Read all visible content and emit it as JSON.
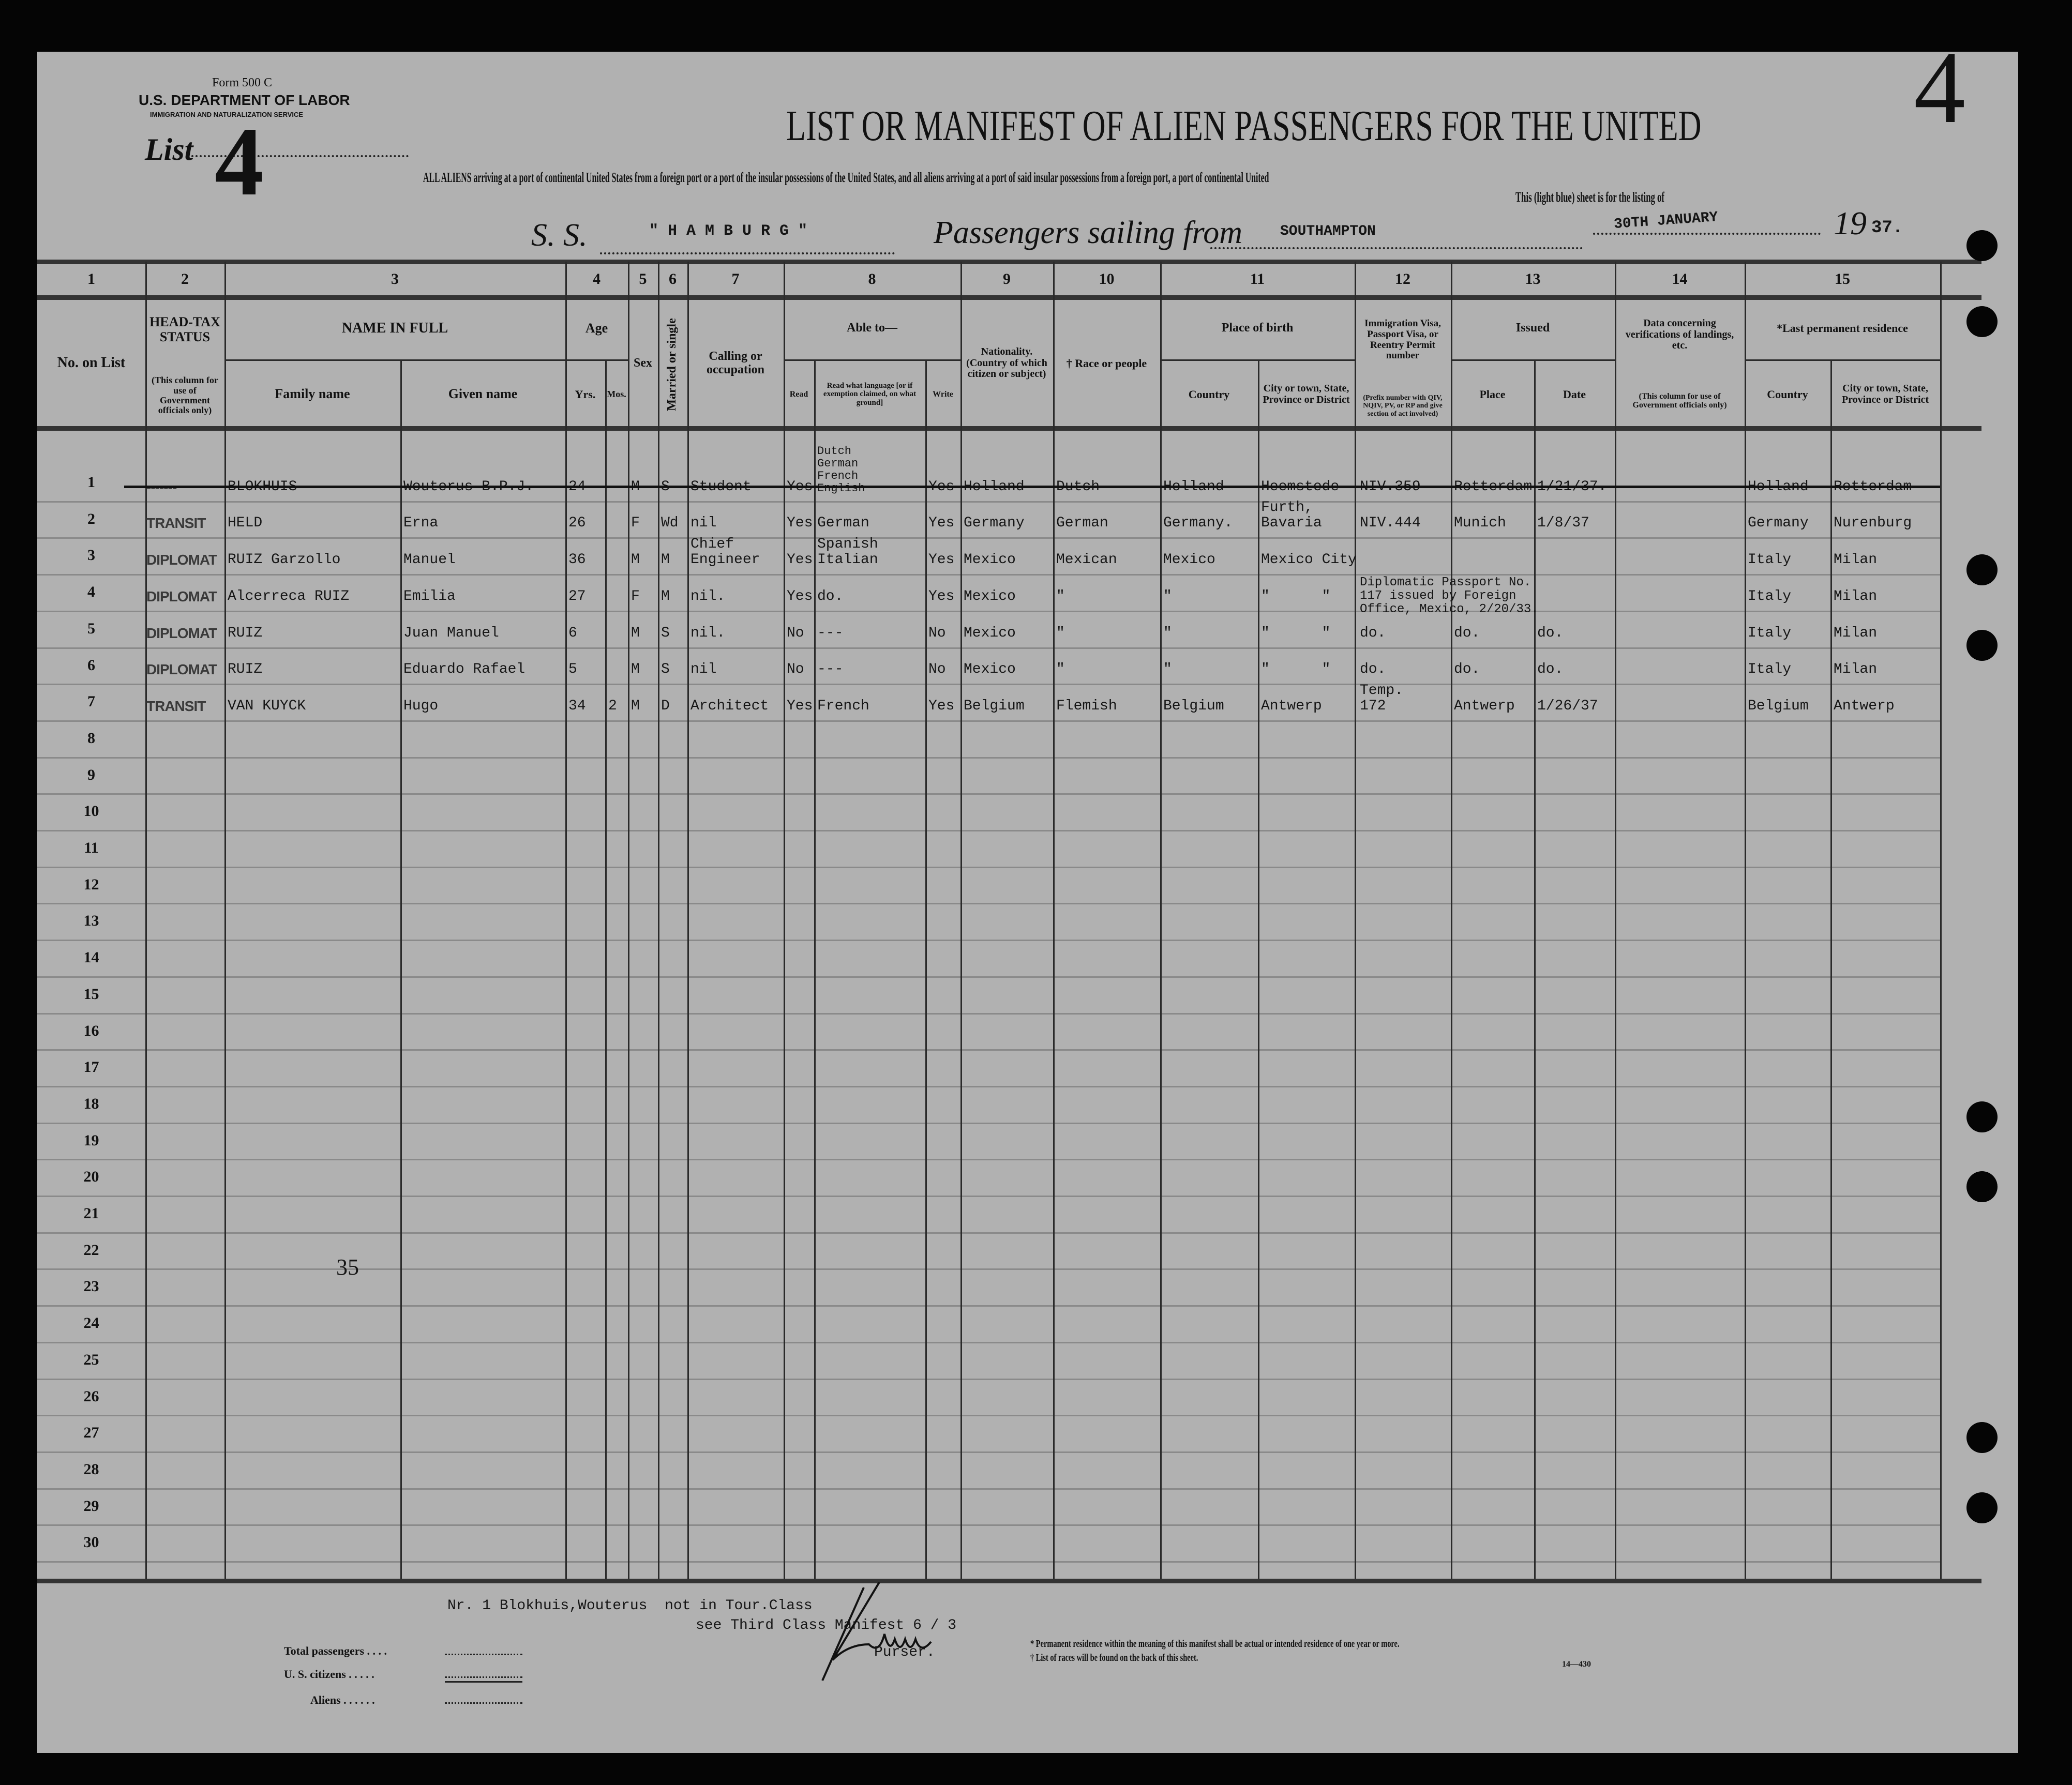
{
  "form": {
    "form_number": "Form 500 C",
    "department": "U.S. DEPARTMENT OF LABOR",
    "service": "IMMIGRATION AND NATURALIZATION SERVICE",
    "list_label": "List",
    "list_number": "4",
    "corner_number": "4"
  },
  "title": "LIST OR MANIFEST OF ALIEN PASSENGERS FOR THE UNITED",
  "subtitle_line1": "ALL ALIENS arriving at a port of continental United States from a foreign port or a port of the insular possessions of the United States, and all aliens arriving at a port of said insular possessions from a foreign port, a port of continental United",
  "subtitle_line2": "This (light blue) sheet is for the listing of",
  "voyage": {
    "ss_label": "S. S.",
    "ship": "\" H A M B U R G \"",
    "sailing_label": "Passengers sailing from",
    "port": "SOUTHAMPTON",
    "date": "30TH JANUARY",
    "year_prefix": "19",
    "year_suffix": "37."
  },
  "header": {
    "column_numbers": [
      "1",
      "2",
      "3",
      "4",
      "5",
      "6",
      "7",
      "8",
      "9",
      "10",
      "11",
      "12",
      "13",
      "14",
      "15"
    ],
    "no_on_list": "No. on List",
    "head_tax": "HEAD-TAX STATUS",
    "head_tax_note": "(This column for use of Government officials only)",
    "name_in_full": "NAME IN FULL",
    "family_name": "Family name",
    "given_name": "Given name",
    "age": "Age",
    "yrs": "Yrs.",
    "mos": "Mos.",
    "sex": "Sex",
    "marital": "Married or single",
    "calling": "Calling or occupation",
    "able_to": "Able to—",
    "read": "Read",
    "read_language": "Read what language [or if exemption claimed, on what ground]",
    "write": "Write",
    "nationality": "Nationality. (Country of which citizen or subject)",
    "race": "† Race or people",
    "place_of_birth": "Place of birth",
    "birth_country": "Country",
    "birth_city": "City or town, State, Province or District",
    "visa": "Immigration Visa, Passport Visa, or Reentry Permit number",
    "visa_note": "(Prefix number with QIV, NQIV, PV, or RP and give section of act involved)",
    "issued": "Issued",
    "issued_place": "Place",
    "issued_date": "Date",
    "verification": "Data concerning verifications of landings, etc.",
    "verification_note": "(This column for use of Government officials only)",
    "last_residence": "*Last permanent residence",
    "res_country": "Country",
    "res_city": "City or town, State, Province or District"
  },
  "row_numbers": [
    "1",
    "2",
    "3",
    "4",
    "5",
    "6",
    "7",
    "8",
    "9",
    "10",
    "11",
    "12",
    "13",
    "14",
    "15",
    "16",
    "17",
    "18",
    "19",
    "20",
    "21",
    "22",
    "23",
    "24",
    "25",
    "26",
    "27",
    "28",
    "29",
    "30"
  ],
  "rows": [
    {
      "status": "-------",
      "family": "BLOKHUIS",
      "given": "Wouterus B.P.J.",
      "yrs": "24",
      "mos": "",
      "sex": "M",
      "marital": "S",
      "occupation": "Student",
      "read": "Yes",
      "language": "Dutch\nGerman\nFrench\nEnglish",
      "write": "Yes",
      "nationality": "Holland",
      "race": "Dutch",
      "birth_country": "Holland",
      "birth_city": "Heemstede",
      "visa": "NIV.359",
      "issued_place": "Rotterdam",
      "issued_date": "1/21/37.",
      "res_country": "Holland",
      "res_city": "Rotterdam",
      "struck": true
    },
    {
      "status": "TRANSIT",
      "family": "HELD",
      "given": "Erna",
      "yrs": "26",
      "mos": "",
      "sex": "F",
      "marital": "Wd",
      "occupation": "nil",
      "read": "Yes",
      "language": "German",
      "write": "Yes",
      "nationality": "Germany",
      "race": "German",
      "birth_country": "Germany.",
      "birth_city": "Furth,\nBavaria",
      "visa": "NIV.444",
      "issued_place": "Munich",
      "issued_date": "1/8/37",
      "res_country": "Germany",
      "res_city": "Nurenburg"
    },
    {
      "status": "DIPLOMAT",
      "family": "RUIZ Garzollo",
      "given": "Manuel",
      "yrs": "36",
      "mos": "",
      "sex": "M",
      "marital": "M",
      "occupation": "Chief\nEngineer",
      "read": "Yes",
      "language": "Spanish\nItalian",
      "write": "Yes",
      "nationality": "Mexico",
      "race": "Mexican",
      "birth_country": "Mexico",
      "birth_city": "Mexico City",
      "visa": "",
      "issued_place": "",
      "issued_date": "",
      "res_country": "Italy",
      "res_city": "Milan"
    },
    {
      "status": "DIPLOMAT",
      "family": "Alcerreca RUIZ",
      "given": "Emilia",
      "yrs": "27",
      "mos": "",
      "sex": "F",
      "marital": "M",
      "occupation": "nil.",
      "read": "Yes",
      "language": "do.",
      "write": "Yes",
      "nationality": "Mexico",
      "race": "\"",
      "birth_country": "\"",
      "birth_city": "\"      \"",
      "visa": "Diplomatic Passport No.\n117 issued by Foreign\nOffice, Mexico, 2/20/33.",
      "issued_place": "",
      "issued_date": "",
      "res_country": "Italy",
      "res_city": "Milan"
    },
    {
      "status": "DIPLOMAT",
      "family": "RUIZ",
      "given": "Juan Manuel",
      "yrs": "6",
      "mos": "",
      "sex": "M",
      "marital": "S",
      "occupation": "nil.",
      "read": "No",
      "language": "---",
      "write": "No",
      "nationality": "Mexico",
      "race": "\"",
      "birth_country": "\"",
      "birth_city": "\"      \"",
      "visa": "do.",
      "issued_place": "do.",
      "issued_date": "do.",
      "res_country": "Italy",
      "res_city": "Milan"
    },
    {
      "status": "DIPLOMAT",
      "family": "RUIZ",
      "given": "Eduardo Rafael",
      "yrs": "5",
      "mos": "",
      "sex": "M",
      "marital": "S",
      "occupation": "nil",
      "read": "No",
      "language": "---",
      "write": "No",
      "nationality": "Mexico",
      "race": "\"",
      "birth_country": "\"",
      "birth_city": "\"      \"",
      "visa": "do.",
      "issued_place": "do.",
      "issued_date": "do.",
      "res_country": "Italy",
      "res_city": "Milan"
    },
    {
      "status": "TRANSIT",
      "family": "VAN KUYCK",
      "given": "Hugo",
      "yrs": "34",
      "mos": "2",
      "sex": "M",
      "marital": "D",
      "occupation": "Architect",
      "read": "Yes",
      "language": "French",
      "write": "Yes",
      "nationality": "Belgium",
      "race": "Flemish",
      "birth_country": "Belgium",
      "birth_city": "Antwerp",
      "visa": "Temp.\n172",
      "issued_place": "Antwerp",
      "issued_date": "1/26/37",
      "res_country": "Belgium",
      "res_city": "Antwerp"
    }
  ],
  "margin_number": "35",
  "footer": {
    "note_line1": "Nr. 1 Blokhuis,Wouterus  not in Tour.Class",
    "note_line2": "see Third Class Manifest 6 / 3",
    "total_passengers": "Total passengers . . . .",
    "us_citizens": "U. S. citizens . . . . .",
    "aliens": "Aliens . . . . . .",
    "purser": "Purser.",
    "footnote1": "* Permanent residence within the meaning of this manifest shall be actual or intended residence of one year or more.",
    "footnote2": "† List of races will be found on the back of this sheet.",
    "form_code": "14—430"
  }
}
